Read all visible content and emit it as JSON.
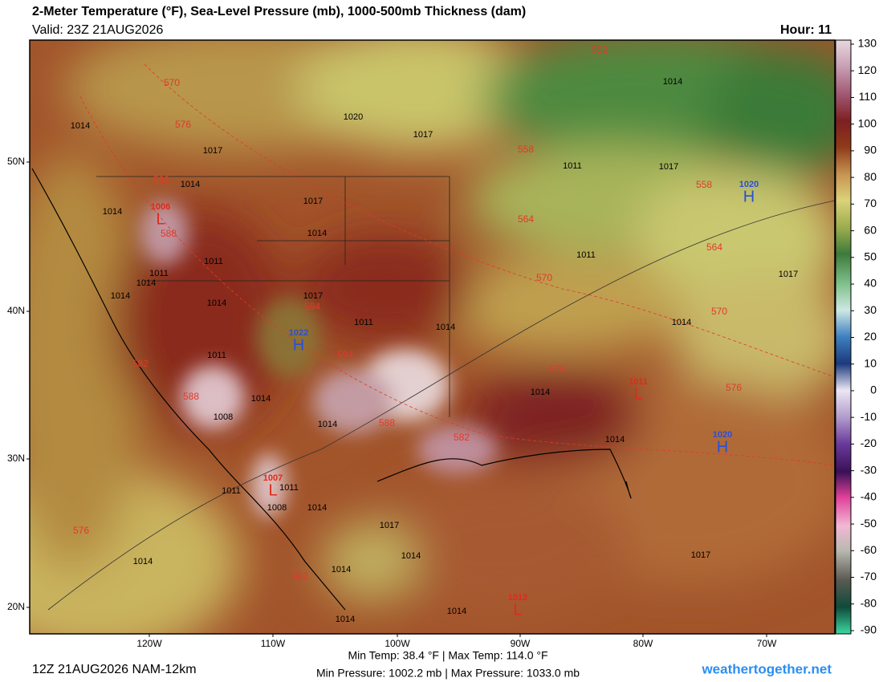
{
  "header": {
    "title": "2-Meter Temperature (°F), Sea-Level Pressure (mb), 1000-500mb Thickness (dam)",
    "valid": "Valid: 23Z 21AUG2026",
    "hour": "Hour: 11"
  },
  "colorbar": {
    "lim": [
      -90,
      130
    ],
    "ticks": [
      130,
      120,
      110,
      100,
      90,
      80,
      70,
      60,
      50,
      40,
      30,
      20,
      10,
      0,
      -10,
      -20,
      -30,
      -40,
      -50,
      -60,
      -70,
      -80,
      -90
    ]
  },
  "map": {
    "lat_labels": [
      "50N",
      "40N",
      "30N",
      "20N"
    ],
    "lon_labels": [
      "120W",
      "110W",
      "100W",
      "90W",
      "80W",
      "70W"
    ],
    "isobar_labels": [
      1014,
      1017,
      1020,
      1017,
      1011,
      1017,
      1014,
      1014,
      1014,
      1017,
      1014,
      1011,
      1014,
      1011,
      1014,
      1014,
      1017,
      1011,
      1014,
      1011,
      1017,
      1014,
      1011,
      1014,
      1008,
      1014,
      1014,
      1014,
      1011,
      1011,
      1008,
      1014,
      1017,
      1014,
      1014,
      1014,
      1014,
      1014,
      1017
    ],
    "thickness_labels": [
      570,
      576,
      552,
      558,
      582,
      564,
      588,
      570,
      564,
      558,
      594,
      594,
      570,
      582,
      588,
      588,
      582,
      576,
      576,
      576,
      582
    ],
    "centers": [
      {
        "symbol": "L",
        "pressure": 1006
      },
      {
        "symbol": "H",
        "pressure": 1022
      },
      {
        "symbol": "L",
        "pressure": 1011
      },
      {
        "symbol": "H",
        "pressure": 1020
      },
      {
        "symbol": "H",
        "pressure": 1020
      },
      {
        "symbol": "L",
        "pressure": 1007
      },
      {
        "symbol": "L",
        "pressure": 1012
      }
    ]
  },
  "footer": {
    "run": "12Z 21AUG2026 NAM-12km",
    "temp_range": "Min Temp:  38.4 °F | Max Temp: 114.0 °F",
    "pressure_range": "Min Pressure: 1002.2 mb | Max Pressure: 1033.0 mb",
    "site": "weathertogether.net"
  }
}
